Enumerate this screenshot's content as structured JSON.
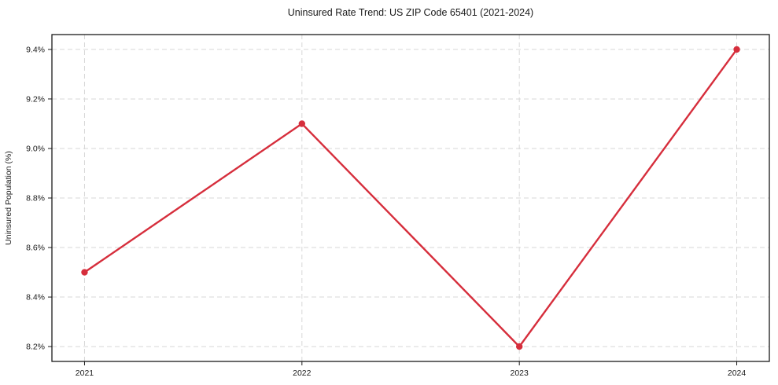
{
  "chart_data": {
    "type": "line",
    "title": "Uninsured Rate Trend: US ZIP Code 65401 (2021-2024)",
    "xlabel": "",
    "ylabel": "Uninsured Population (%)",
    "x": [
      2021,
      2022,
      2023,
      2024
    ],
    "xtick_labels": [
      "2021",
      "2022",
      "2023",
      "2024"
    ],
    "values": [
      8.5,
      9.1,
      8.2,
      9.4
    ],
    "yticks": [
      8.2,
      8.4,
      8.6,
      8.8,
      9.0,
      9.2,
      9.4
    ],
    "ytick_labels": [
      "8.2%",
      "8.4%",
      "8.6%",
      "8.8%",
      "9.0%",
      "9.2%",
      "9.4%"
    ],
    "xlim": [
      2020.85,
      2024.15
    ],
    "ylim": [
      8.14,
      9.46
    ],
    "grid": true,
    "grid_style": "dashed",
    "legend": "none",
    "line_color": "#d62e3c",
    "marker": "circle",
    "background": "#ffffff"
  }
}
